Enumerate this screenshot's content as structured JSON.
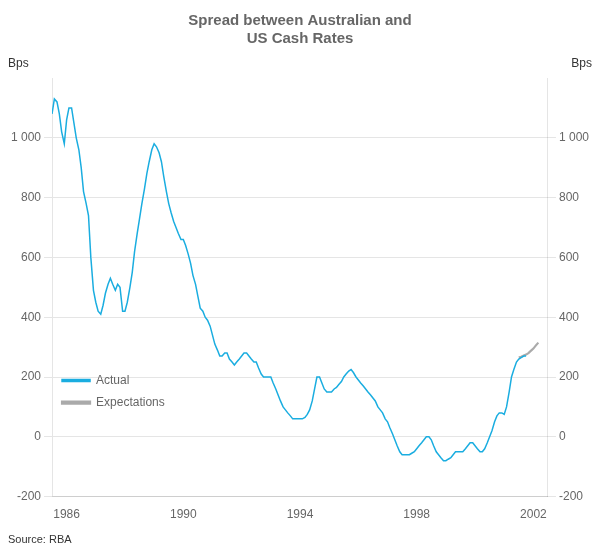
{
  "chart_data": {
    "type": "line",
    "title": "Spread between Australian and\nUS Cash Rates",
    "ylabel": "Bps",
    "y2label": "Bps",
    "annotation": "Source: RBA",
    "series": [
      {
        "name": "Actual",
        "color": "#1aade0",
        "x": [
          1985.5,
          1985.58,
          1985.67,
          1985.75,
          1985.83,
          1985.92,
          1986.0,
          1986.08,
          1986.17,
          1986.25,
          1986.33,
          1986.42,
          1986.5,
          1986.58,
          1986.67,
          1986.75,
          1986.83,
          1986.92,
          1987.0,
          1987.08,
          1987.17,
          1987.25,
          1987.33,
          1987.42,
          1987.5,
          1987.58,
          1987.67,
          1987.75,
          1987.83,
          1987.92,
          1988.0,
          1988.08,
          1988.17,
          1988.25,
          1988.33,
          1988.42,
          1988.5,
          1988.58,
          1988.67,
          1988.75,
          1988.83,
          1988.92,
          1989.0,
          1989.08,
          1989.17,
          1989.25,
          1989.33,
          1989.42,
          1989.5,
          1989.58,
          1989.67,
          1989.75,
          1989.83,
          1989.92,
          1990.0,
          1990.08,
          1990.17,
          1990.25,
          1990.33,
          1990.42,
          1990.5,
          1990.58,
          1990.67,
          1990.75,
          1990.83,
          1990.92,
          1991.0,
          1991.08,
          1991.17,
          1991.25,
          1991.33,
          1991.42,
          1991.5,
          1991.58,
          1991.67,
          1991.75,
          1991.83,
          1991.92,
          1992.0,
          1992.08,
          1992.17,
          1992.25,
          1992.33,
          1992.42,
          1992.5,
          1992.58,
          1992.67,
          1992.75,
          1992.83,
          1992.92,
          1993.0,
          1993.08,
          1993.17,
          1993.25,
          1993.33,
          1993.42,
          1993.5,
          1993.58,
          1993.67,
          1993.75,
          1993.83,
          1993.92,
          1994.0,
          1994.08,
          1994.17,
          1994.25,
          1994.33,
          1994.42,
          1994.5,
          1994.58,
          1994.67,
          1994.75,
          1994.83,
          1994.92,
          1995.0,
          1995.08,
          1995.17,
          1995.25,
          1995.33,
          1995.42,
          1995.5,
          1995.58,
          1995.67,
          1995.75,
          1995.83,
          1995.92,
          1996.0,
          1996.08,
          1996.17,
          1996.25,
          1996.33,
          1996.42,
          1996.5,
          1996.58,
          1996.67,
          1996.75,
          1996.83,
          1996.92,
          1997.0,
          1997.08,
          1997.17,
          1997.25,
          1997.33,
          1997.42,
          1997.5,
          1997.58,
          1997.67,
          1997.75,
          1997.83,
          1997.92,
          1998.0,
          1998.08,
          1998.17,
          1998.25,
          1998.33,
          1998.42,
          1998.5,
          1998.58,
          1998.67,
          1998.75,
          1998.83,
          1998.92,
          1999.0,
          1999.08,
          1999.17,
          1999.25,
          1999.33,
          1999.42,
          1999.5,
          1999.58,
          1999.67,
          1999.75,
          1999.83,
          1999.92,
          2000.0,
          2000.08,
          2000.17,
          2000.25,
          2000.33,
          2000.42,
          2000.5,
          2000.58,
          2000.67,
          2000.75,
          2000.83,
          2000.92,
          2001.0,
          2001.08,
          2001.17,
          2001.25,
          2001.33,
          2001.42,
          2001.5,
          2001.58,
          2001.67,
          2001.75
        ],
        "values": [
          1080,
          1130,
          1120,
          1080,
          1020,
          980,
          1060,
          1100,
          1100,
          1050,
          1000,
          960,
          900,
          820,
          780,
          740,
          600,
          490,
          450,
          420,
          410,
          440,
          480,
          510,
          530,
          510,
          490,
          510,
          500,
          420,
          420,
          450,
          500,
          550,
          620,
          680,
          730,
          780,
          830,
          880,
          920,
          960,
          980,
          970,
          950,
          920,
          870,
          820,
          780,
          750,
          720,
          700,
          680,
          660,
          660,
          640,
          610,
          580,
          540,
          510,
          470,
          430,
          420,
          400,
          390,
          370,
          340,
          310,
          290,
          270,
          270,
          280,
          280,
          260,
          250,
          240,
          250,
          260,
          270,
          280,
          280,
          270,
          260,
          250,
          250,
          230,
          210,
          200,
          200,
          200,
          200,
          180,
          160,
          140,
          120,
          100,
          90,
          80,
          70,
          60,
          60,
          60,
          60,
          60,
          65,
          75,
          90,
          120,
          160,
          200,
          200,
          180,
          160,
          150,
          150,
          150,
          160,
          165,
          175,
          185,
          200,
          210,
          220,
          225,
          215,
          200,
          190,
          180,
          170,
          160,
          150,
          140,
          130,
          120,
          100,
          90,
          80,
          60,
          50,
          30,
          10,
          -10,
          -30,
          -50,
          -60,
          -60,
          -60,
          -60,
          -55,
          -50,
          -40,
          -30,
          -20,
          -10,
          0,
          0,
          -10,
          -30,
          -50,
          -60,
          -70,
          -80,
          -80,
          -75,
          -70,
          -60,
          -50,
          -50,
          -50,
          -50,
          -40,
          -30,
          -20,
          -20,
          -30,
          -40,
          -50,
          -50,
          -40,
          -20,
          0,
          20,
          50,
          70,
          80,
          80,
          75,
          100,
          150,
          200,
          225,
          250,
          260,
          265,
          270,
          270
        ]
      },
      {
        "name": "Expectations",
        "color": "#aaaaaa",
        "x": [
          2001.5,
          2001.58,
          2001.67,
          2001.75,
          2001.83,
          2001.92,
          2002.0,
          2002.08,
          2002.17
        ],
        "values": [
          265,
          268,
          272,
          275,
          280,
          288,
          295,
          305,
          315
        ]
      }
    ],
    "xlim": [
      1985.5,
      2002.5
    ],
    "xticks": [
      1986,
      1990,
      1994,
      1998,
      2002
    ],
    "ylim": [
      -200,
      1200
    ],
    "yticks": [
      -200,
      0,
      200,
      400,
      600,
      800,
      {
        "value": 1000,
        "label": "1 000"
      }
    ],
    "y2lim": [
      -200,
      1200
    ],
    "y2ticks": [
      -200,
      0,
      200,
      400,
      600,
      800,
      {
        "value": 1000,
        "label": "1 000"
      }
    ],
    "grid": "y",
    "legend": "upper right"
  }
}
